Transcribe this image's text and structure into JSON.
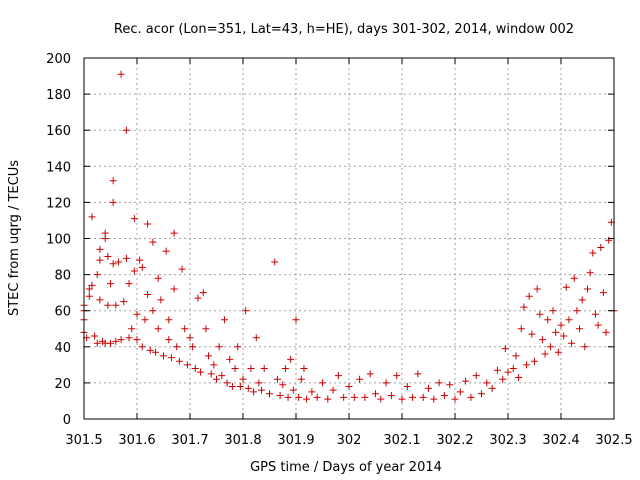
{
  "chart_data": {
    "type": "scatter",
    "title": "Rec. acor (Lon=351, Lat=43, h=HE), days 301-302, 2014, window 002",
    "xlabel": "GPS time / Days of year 2014",
    "ylabel": "STEC from uqrg / TECUs",
    "xlim": [
      301.5,
      302.5
    ],
    "ylim": [
      0,
      200
    ],
    "x_ticks": [
      301.5,
      301.6,
      301.7,
      301.8,
      301.9,
      302.0,
      302.1,
      302.2,
      302.3,
      302.4,
      302.5
    ],
    "x_tick_labels": [
      "301.5",
      "301.6",
      "301.7",
      "301.8",
      "301.9",
      "302",
      "302.1",
      "302.2",
      "302.3",
      "302.4",
      "302.5"
    ],
    "y_ticks": [
      0,
      20,
      40,
      60,
      80,
      100,
      120,
      140,
      160,
      180,
      200
    ],
    "y_tick_labels": [
      "0",
      "20",
      "40",
      "60",
      "80",
      "100",
      "120",
      "140",
      "160",
      "180",
      "200"
    ],
    "grid": true,
    "marker": "+",
    "color": "#cc0000",
    "series": [
      {
        "name": "STEC",
        "points": [
          [
            301.5,
            60
          ],
          [
            301.5,
            55
          ],
          [
            301.5,
            48
          ],
          [
            301.5,
            63
          ],
          [
            301.505,
            45
          ],
          [
            301.51,
            72
          ],
          [
            301.51,
            68
          ],
          [
            301.515,
            112
          ],
          [
            301.515,
            74
          ],
          [
            301.52,
            46
          ],
          [
            301.525,
            42
          ],
          [
            301.525,
            80
          ],
          [
            301.53,
            88
          ],
          [
            301.53,
            94
          ],
          [
            301.53,
            66
          ],
          [
            301.535,
            43
          ],
          [
            301.54,
            42
          ],
          [
            301.54,
            100
          ],
          [
            301.54,
            103
          ],
          [
            301.545,
            63
          ],
          [
            301.545,
            90
          ],
          [
            301.55,
            42
          ],
          [
            301.55,
            75
          ],
          [
            301.555,
            132
          ],
          [
            301.555,
            120
          ],
          [
            301.555,
            86
          ],
          [
            301.56,
            43
          ],
          [
            301.56,
            63
          ],
          [
            301.565,
            87
          ],
          [
            301.57,
            191
          ],
          [
            301.57,
            44
          ],
          [
            301.575,
            65
          ],
          [
            301.58,
            160
          ],
          [
            301.58,
            89
          ],
          [
            301.585,
            45
          ],
          [
            301.585,
            75
          ],
          [
            301.59,
            50
          ],
          [
            301.595,
            111
          ],
          [
            301.595,
            82
          ],
          [
            301.6,
            44
          ],
          [
            301.6,
            58
          ],
          [
            301.605,
            88
          ],
          [
            301.61,
            40
          ],
          [
            301.61,
            84
          ],
          [
            301.615,
            55
          ],
          [
            301.62,
            108
          ],
          [
            301.62,
            69
          ],
          [
            301.625,
            38
          ],
          [
            301.63,
            98
          ],
          [
            301.63,
            60
          ],
          [
            301.635,
            37
          ],
          [
            301.64,
            78
          ],
          [
            301.64,
            50
          ],
          [
            301.645,
            66
          ],
          [
            301.65,
            35
          ],
          [
            301.655,
            93
          ],
          [
            301.66,
            55
          ],
          [
            301.66,
            44
          ],
          [
            301.665,
            34
          ],
          [
            301.67,
            103
          ],
          [
            301.67,
            72
          ],
          [
            301.675,
            40
          ],
          [
            301.68,
            32
          ],
          [
            301.685,
            83
          ],
          [
            301.69,
            50
          ],
          [
            301.695,
            30
          ],
          [
            301.7,
            45
          ],
          [
            301.705,
            40
          ],
          [
            301.71,
            28
          ],
          [
            301.715,
            67
          ],
          [
            301.72,
            26
          ],
          [
            301.725,
            70
          ],
          [
            301.73,
            50
          ],
          [
            301.735,
            35
          ],
          [
            301.74,
            25
          ],
          [
            301.745,
            30
          ],
          [
            301.75,
            22
          ],
          [
            301.755,
            40
          ],
          [
            301.76,
            24
          ],
          [
            301.765,
            55
          ],
          [
            301.77,
            20
          ],
          [
            301.775,
            33
          ],
          [
            301.78,
            18
          ],
          [
            301.785,
            28
          ],
          [
            301.79,
            40
          ],
          [
            301.795,
            18
          ],
          [
            301.8,
            22
          ],
          [
            301.805,
            60
          ],
          [
            301.81,
            17
          ],
          [
            301.815,
            28
          ],
          [
            301.82,
            15
          ],
          [
            301.825,
            45
          ],
          [
            301.83,
            20
          ],
          [
            301.835,
            16
          ],
          [
            301.84,
            28
          ],
          [
            301.85,
            14
          ],
          [
            301.86,
            87
          ],
          [
            301.865,
            22
          ],
          [
            301.87,
            13
          ],
          [
            301.875,
            19
          ],
          [
            301.88,
            28
          ],
          [
            301.885,
            12
          ],
          [
            301.89,
            33
          ],
          [
            301.895,
            16
          ],
          [
            301.9,
            55
          ],
          [
            301.905,
            12
          ],
          [
            301.91,
            22
          ],
          [
            301.915,
            28
          ],
          [
            301.92,
            11
          ],
          [
            301.93,
            15
          ],
          [
            301.94,
            12
          ],
          [
            301.95,
            20
          ],
          [
            301.96,
            11
          ],
          [
            301.97,
            16
          ],
          [
            301.98,
            24
          ],
          [
            301.99,
            12
          ],
          [
            302.0,
            18
          ],
          [
            302.01,
            12
          ],
          [
            302.02,
            22
          ],
          [
            302.03,
            12
          ],
          [
            302.04,
            25
          ],
          [
            302.05,
            14
          ],
          [
            302.06,
            11
          ],
          [
            302.07,
            20
          ],
          [
            302.08,
            13
          ],
          [
            302.09,
            24
          ],
          [
            302.1,
            11
          ],
          [
            302.11,
            18
          ],
          [
            302.12,
            12
          ],
          [
            302.13,
            25
          ],
          [
            302.14,
            12
          ],
          [
            302.15,
            17
          ],
          [
            302.16,
            11
          ],
          [
            302.17,
            20
          ],
          [
            302.18,
            13
          ],
          [
            302.19,
            19
          ],
          [
            302.2,
            11
          ],
          [
            302.21,
            15
          ],
          [
            302.22,
            21
          ],
          [
            302.23,
            12
          ],
          [
            302.24,
            24
          ],
          [
            302.25,
            14
          ],
          [
            302.26,
            20
          ],
          [
            302.27,
            17
          ],
          [
            302.28,
            27
          ],
          [
            302.29,
            22
          ],
          [
            302.295,
            39
          ],
          [
            302.3,
            26
          ],
          [
            302.31,
            28
          ],
          [
            302.315,
            35
          ],
          [
            302.32,
            23
          ],
          [
            302.325,
            50
          ],
          [
            302.33,
            62
          ],
          [
            302.335,
            30
          ],
          [
            302.34,
            68
          ],
          [
            302.345,
            47
          ],
          [
            302.35,
            32
          ],
          [
            302.355,
            72
          ],
          [
            302.36,
            58
          ],
          [
            302.365,
            44
          ],
          [
            302.37,
            36
          ],
          [
            302.375,
            55
          ],
          [
            302.38,
            40
          ],
          [
            302.385,
            60
          ],
          [
            302.39,
            48
          ],
          [
            302.395,
            37
          ],
          [
            302.4,
            52
          ],
          [
            302.405,
            46
          ],
          [
            302.41,
            73
          ],
          [
            302.415,
            55
          ],
          [
            302.42,
            42
          ],
          [
            302.425,
            78
          ],
          [
            302.43,
            60
          ],
          [
            302.435,
            50
          ],
          [
            302.44,
            66
          ],
          [
            302.445,
            40
          ],
          [
            302.45,
            72
          ],
          [
            302.455,
            81
          ],
          [
            302.46,
            92
          ],
          [
            302.465,
            58
          ],
          [
            302.47,
            52
          ],
          [
            302.475,
            95
          ],
          [
            302.48,
            70
          ],
          [
            302.485,
            48
          ],
          [
            302.49,
            99
          ],
          [
            302.495,
            109
          ],
          [
            302.5,
            60
          ]
        ]
      }
    ]
  }
}
